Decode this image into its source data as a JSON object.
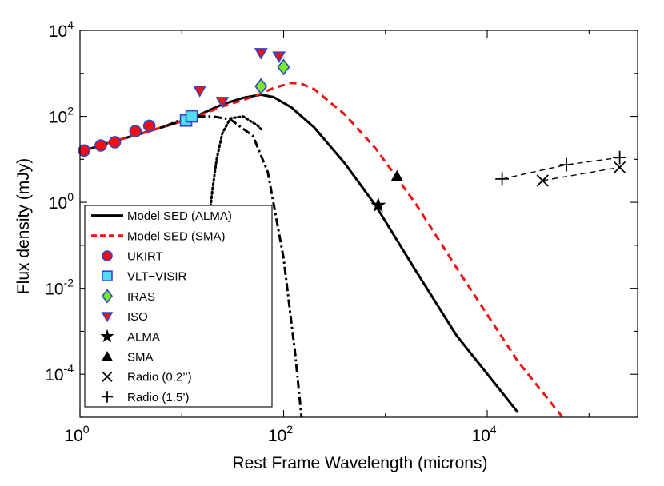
{
  "chart_data": {
    "type": "scatter",
    "xscale": "log",
    "yscale": "log",
    "xlim": [
      1,
      300000
    ],
    "ylim": [
      1e-05,
      10000
    ],
    "xlabel": "Rest Frame Wavelength (microns)",
    "ylabel": "Flux density (mJy)",
    "x_ticks": [
      {
        "base": "10",
        "exp": "0",
        "value": 1
      },
      {
        "base": "10",
        "exp": "2",
        "value": 100
      },
      {
        "base": "10",
        "exp": "4",
        "value": 10000
      }
    ],
    "y_ticks": [
      {
        "base": "10",
        "exp": "4",
        "value": 10000
      },
      {
        "base": "10",
        "exp": "2",
        "value": 100
      },
      {
        "base": "10",
        "exp": "0",
        "value": 1
      },
      {
        "base": "10",
        "exp": "-2",
        "value": 0.01
      },
      {
        "base": "10",
        "exp": "-4",
        "value": 0.0001
      }
    ],
    "legend_position": "bottom-left",
    "series": [
      {
        "key": "model_alma",
        "name": "Model SED (ALMA)",
        "kind": "line",
        "style": "solid",
        "color": "#000000",
        "x": [
          1.1,
          2,
          4,
          8,
          15,
          25,
          40,
          60,
          80,
          120,
          200,
          400,
          800,
          2000,
          5000,
          20000
        ],
        "y": [
          16,
          25,
          40,
          65,
          110,
          190,
          270,
          320,
          280,
          160,
          55,
          8,
          0.85,
          0.025,
          0.0008,
          1.3e-05
        ]
      },
      {
        "key": "model_sma",
        "name": "Model SED (SMA)",
        "kind": "line",
        "style": "dashed",
        "color": "#ee1111",
        "x": [
          1.1,
          2,
          4,
          8,
          15,
          25,
          40,
          60,
          80,
          120,
          150,
          200,
          400,
          800,
          2000,
          5000,
          20000,
          55000
        ],
        "y": [
          16,
          25,
          40,
          65,
          105,
          170,
          240,
          340,
          460,
          600,
          570,
          430,
          110,
          18,
          0.9,
          0.03,
          0.0002,
          1e-05
        ]
      },
      {
        "key": "cold_dust",
        "name": "",
        "kind": "line",
        "style": "dotted",
        "color": "#000000",
        "x": [
          18,
          20,
          22,
          25,
          30,
          40,
          55,
          60
        ],
        "y": [
          0.2,
          2,
          10,
          40,
          90,
          100,
          62,
          50
        ]
      },
      {
        "key": "hot_dust",
        "name": "",
        "kind": "line",
        "style": "dashdot",
        "color": "#000000",
        "x": [
          7,
          10,
          15,
          20,
          30,
          50,
          70,
          100,
          130,
          150
        ],
        "y": [
          60,
          85,
          100,
          100,
          85,
          35,
          5,
          0.05,
          0.0003,
          1e-05
        ]
      },
      {
        "key": "ukirt",
        "name": "UKIRT",
        "kind": "points",
        "marker": "circle",
        "color": "#ee1111",
        "edge": "#3344cc",
        "x": [
          1.1,
          1.6,
          2.2,
          3.5,
          4.8
        ],
        "y": [
          16,
          21,
          25,
          45,
          60
        ]
      },
      {
        "key": "vlt",
        "name": "VLT−VISIR",
        "kind": "points",
        "marker": "square",
        "color": "#55ddee",
        "edge": "#3344cc",
        "x": [
          11,
          12.5
        ],
        "y": [
          80,
          100
        ]
      },
      {
        "key": "iras",
        "name": "IRAS",
        "kind": "points",
        "marker": "diamond",
        "color": "#77ee22",
        "edge": "#3344cc",
        "x": [
          60,
          100
        ],
        "y": [
          500,
          1400
        ]
      },
      {
        "key": "iso",
        "name": "ISO",
        "kind": "points",
        "marker": "triangle-down",
        "color": "#ee1111",
        "edge": "#3344cc",
        "x": [
          15,
          25,
          60,
          90
        ],
        "y": [
          400,
          220,
          3000,
          2500
        ]
      },
      {
        "key": "alma",
        "name": "ALMA",
        "kind": "points",
        "marker": "star",
        "color": "#000000",
        "x": [
          850
        ],
        "y": [
          0.85
        ]
      },
      {
        "key": "sma",
        "name": "SMA",
        "kind": "points",
        "marker": "triangle-up",
        "color": "#000000",
        "x": [
          1300
        ],
        "y": [
          4
        ]
      },
      {
        "key": "radio_02",
        "name": "Radio (0.2’’)",
        "kind": "linepoints",
        "marker": "x",
        "style": "dashed",
        "color": "#000000",
        "x": [
          35000,
          200000
        ],
        "y": [
          3.2,
          6.5
        ]
      },
      {
        "key": "radio_15",
        "name": "Radio (1.5’)",
        "kind": "linepoints",
        "marker": "plus",
        "style": "dashed",
        "color": "#000000",
        "x": [
          14000,
          60000,
          200000
        ],
        "y": [
          3.5,
          7.5,
          11
        ]
      }
    ]
  }
}
